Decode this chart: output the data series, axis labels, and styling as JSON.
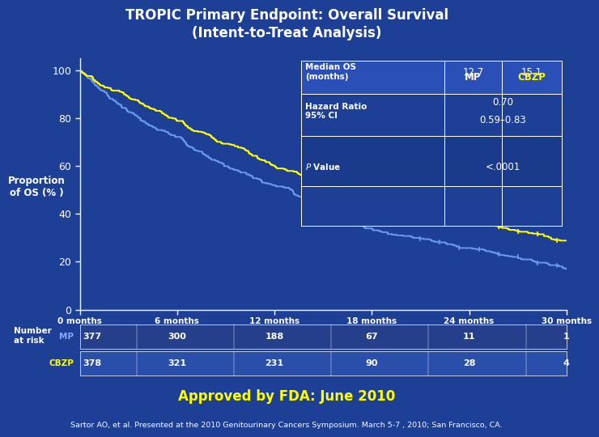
{
  "title_line1": "TROPIC Primary Endpoint: Overall Survival",
  "title_line2": "(Intent-to-Treat Analysis)",
  "bg_color": "#1e3f96",
  "plot_bg_color": "#1e3f96",
  "ylabel": "Proportion\nof OS (% )",
  "xlabel_ticks": [
    "0 months",
    "6 months",
    "12 months",
    "18 months",
    "24 months",
    "30 months"
  ],
  "xtick_vals": [
    0,
    6,
    12,
    18,
    24,
    30
  ],
  "ytick_vals": [
    0,
    20,
    40,
    60,
    80,
    100
  ],
  "mp_color": "#6699ee",
  "cbzp_color": "#ffff00",
  "mp_median": 12.7,
  "cbzp_median": 15.1,
  "hazard_ratio": "0.70",
  "ci_95": "0.59–0.83",
  "p_value": "<.0001",
  "mp_at_risk": [
    377,
    300,
    188,
    67,
    11,
    1
  ],
  "cbzp_at_risk": [
    378,
    321,
    231,
    90,
    28,
    4
  ],
  "approved_text": "Approved by FDA: June 2010",
  "approved_color": "#ffff00",
  "footnote": "Sartor AO, et al. Presented at the 2010 Genitourinary Cancers Symposium. March 5-7 , 2010; San Francisco, CA.",
  "white": "#ffffff",
  "mp_label_color": "#88aaff",
  "cbzp_label_color": "#ffff00",
  "table_header_bg": "#2a50b8",
  "table_row1_bg": "#1e3f96",
  "table_row2_bg": "#1a3a8c",
  "table_row3_bg": "#1e3f96"
}
